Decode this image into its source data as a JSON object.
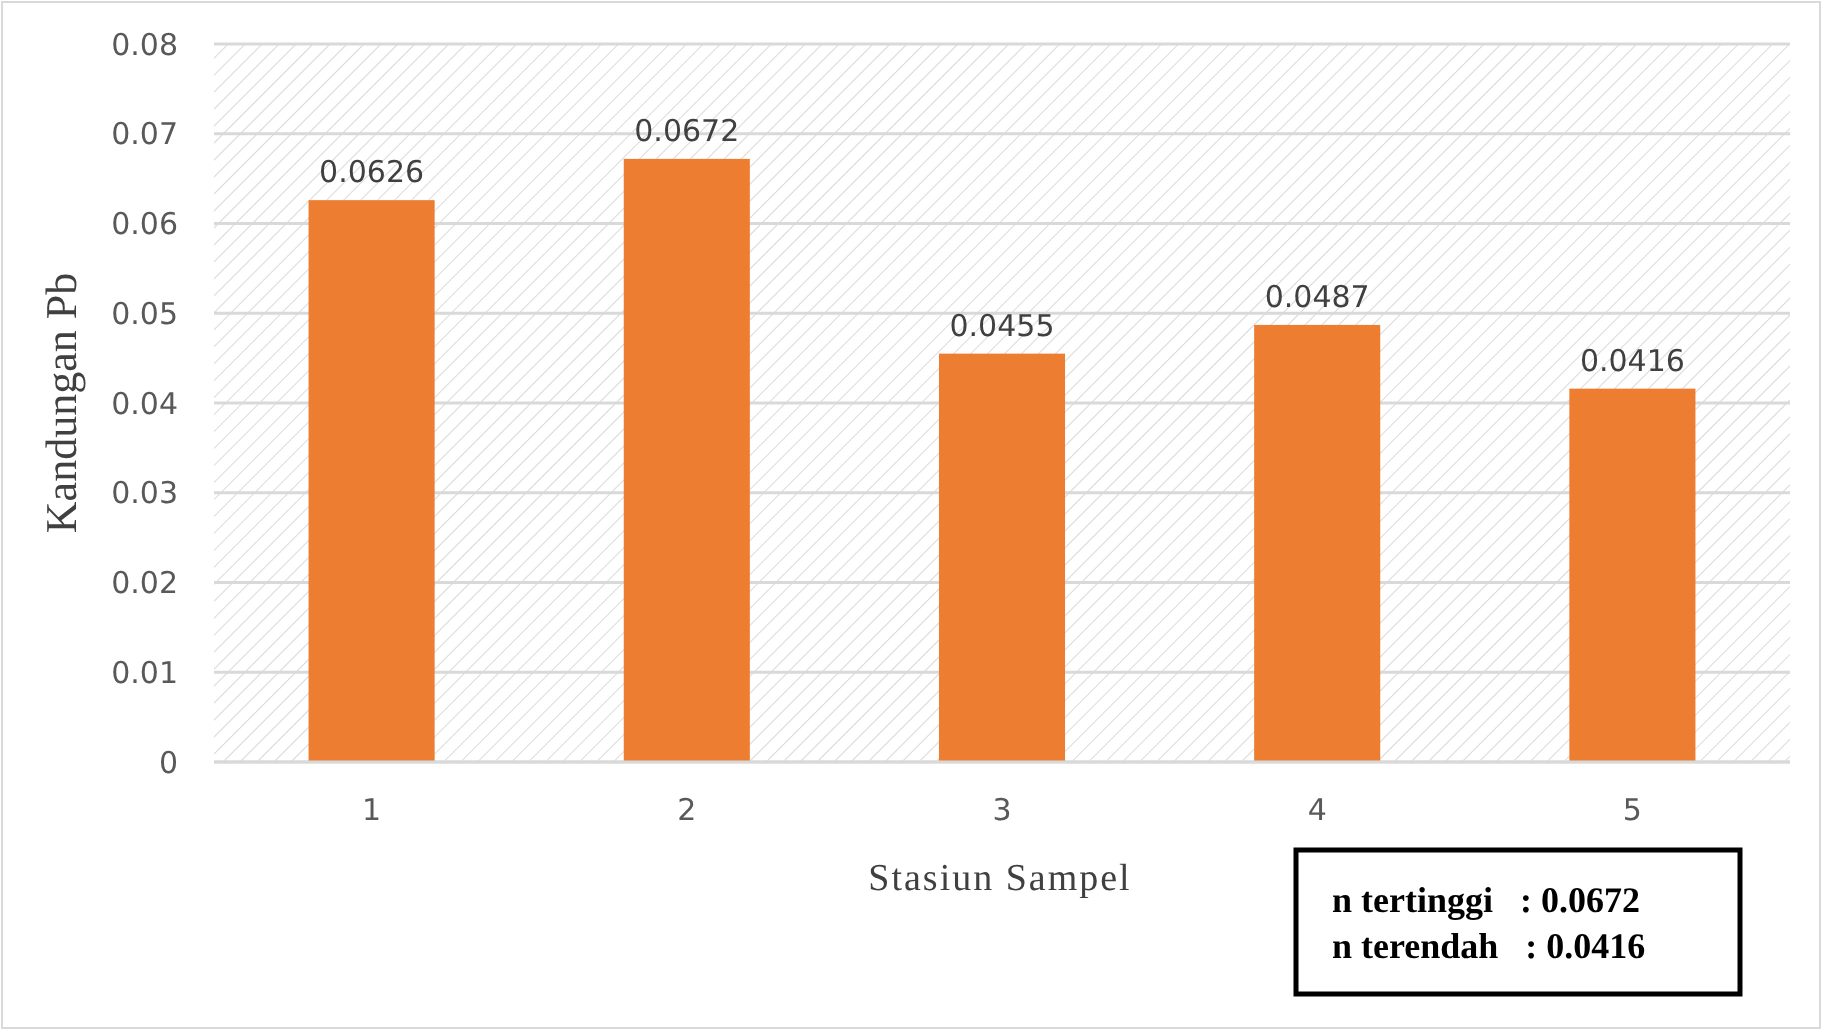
{
  "chart_data": {
    "type": "bar",
    "xlabel": "Stasiun Sampel",
    "ylabel": "Kandungan Pb",
    "categories": [
      "1",
      "2",
      "3",
      "4",
      "5"
    ],
    "values": [
      0.0626,
      0.0672,
      0.0455,
      0.0487,
      0.0416
    ],
    "color": "#ed7d31",
    "data_labels": true,
    "grid": "y",
    "ylim": [
      0,
      0.08
    ],
    "yticks": [
      {
        "value": 0,
        "label": "0"
      },
      0.01,
      0.02,
      0.03,
      0.04,
      0.05,
      0.06,
      0.07,
      0.08
    ],
    "annotations": [
      "n tertinggi   : 0.0672",
      "n terendah   : 0.0416"
    ]
  }
}
